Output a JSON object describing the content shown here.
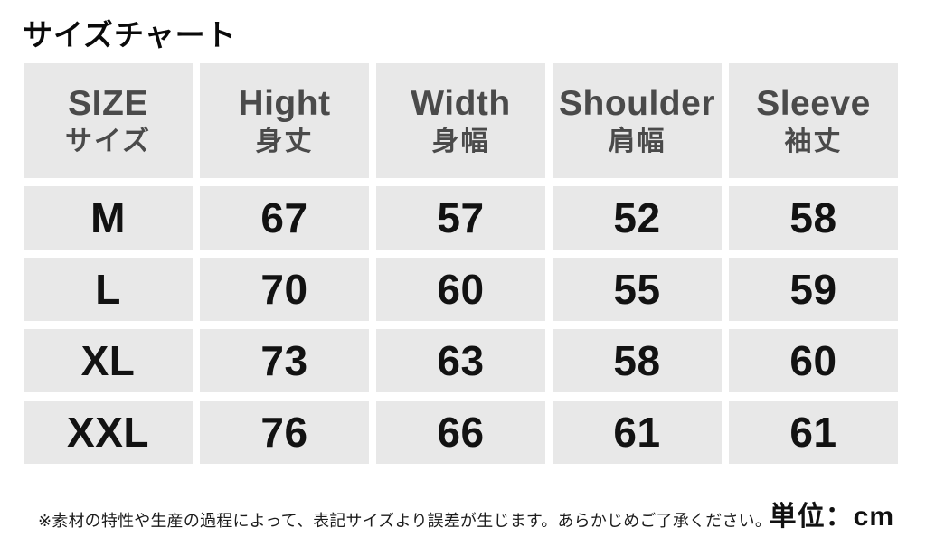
{
  "title": "サイズチャート",
  "table": {
    "header": [
      {
        "en": "SIZE",
        "ja": "サイズ"
      },
      {
        "en": "Hight",
        "ja": "身丈"
      },
      {
        "en": "Width",
        "ja": "身幅"
      },
      {
        "en": "Shoulder",
        "ja": "肩幅"
      },
      {
        "en": "Sleeve",
        "ja": "袖丈"
      }
    ],
    "rows": [
      {
        "size": "M",
        "hight": "67",
        "width": "57",
        "shoulder": "52",
        "sleeve": "58"
      },
      {
        "size": "L",
        "hight": "70",
        "width": "60",
        "shoulder": "55",
        "sleeve": "59"
      },
      {
        "size": "XL",
        "hight": "73",
        "width": "63",
        "shoulder": "58",
        "sleeve": "60"
      },
      {
        "size": "XXL",
        "hight": "76",
        "width": "66",
        "shoulder": "61",
        "sleeve": "61"
      }
    ]
  },
  "footer": {
    "note": "※素材の特性や生産の過程によって、表記サイズより誤差が生じます。あらかじめご了承ください。",
    "unit_label": "単位：cm"
  },
  "colors": {
    "page_background": "#ffffff",
    "cell_background": "#e8e8e8",
    "header_text": "#4a4a4a",
    "data_text": "#121212",
    "title_text": "#0a0a0a"
  },
  "chart_data": {
    "type": "table",
    "title": "サイズチャート",
    "columns": [
      "SIZE サイズ",
      "Hight 身丈",
      "Width 身幅",
      "Shoulder 肩幅",
      "Sleeve 袖丈"
    ],
    "rows": [
      [
        "M",
        67,
        57,
        52,
        58
      ],
      [
        "L",
        70,
        60,
        55,
        59
      ],
      [
        "XL",
        73,
        63,
        58,
        60
      ],
      [
        "XXL",
        76,
        66,
        61,
        61
      ]
    ],
    "unit": "cm",
    "note": "※素材の特性や生産の過程によって、表記サイズより誤差が生じます。あらかじめご了承ください。"
  }
}
